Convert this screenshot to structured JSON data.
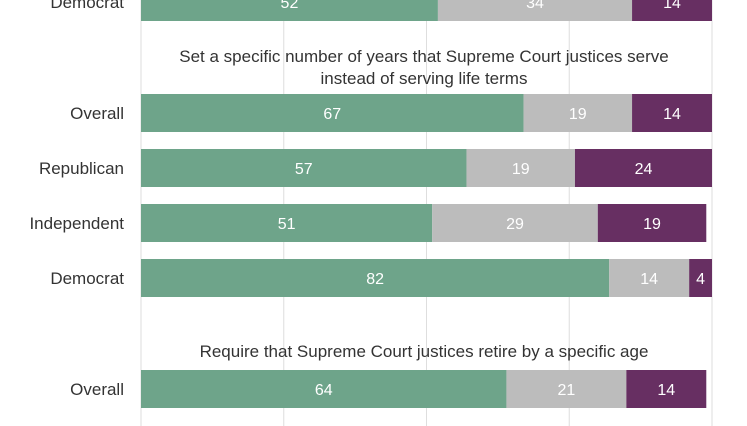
{
  "chart_data": {
    "type": "bar",
    "orientation": "horizontal",
    "stacked": true,
    "grid": true,
    "xlim": [
      0,
      100
    ],
    "colors": [
      "#6ea48a",
      "#bcbcbc",
      "#672f62"
    ],
    "sections": [
      {
        "title": "",
        "rows": [
          {
            "category": "Democrat",
            "values": [
              52,
              34,
              14
            ]
          }
        ]
      },
      {
        "title_lines": [
          "Set a specific number of years that Supreme Court justices serve",
          "instead of serving life terms"
        ],
        "rows": [
          {
            "category": "Overall",
            "values": [
              67,
              19,
              14
            ]
          },
          {
            "category": "Republican",
            "values": [
              57,
              19,
              24
            ]
          },
          {
            "category": "Independent",
            "values": [
              51,
              29,
              19
            ]
          },
          {
            "category": "Democrat",
            "values": [
              82,
              14,
              4
            ]
          }
        ]
      },
      {
        "title_lines": [
          "Require that Supreme Court justices retire by a specific age"
        ],
        "rows": [
          {
            "category": "Overall",
            "values": [
              64,
              21,
              14
            ]
          }
        ]
      }
    ]
  }
}
